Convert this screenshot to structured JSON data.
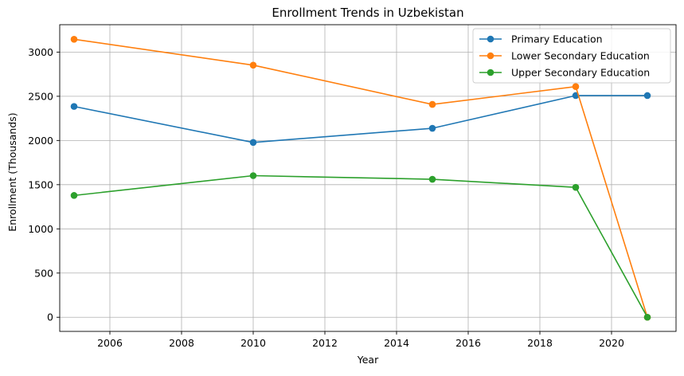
{
  "chart_data": {
    "type": "line",
    "title": "Enrollment Trends in Uzbekistan",
    "xlabel": "Year",
    "ylabel": "Enrollment (Thousands)",
    "xlim": [
      2004.6,
      2021.8
    ],
    "ylim": [
      -160,
      3310
    ],
    "xticks": [
      2006,
      2008,
      2010,
      2012,
      2014,
      2016,
      2018,
      2020
    ],
    "yticks": [
      0,
      500,
      1000,
      1500,
      2000,
      2500,
      3000
    ],
    "grid": true,
    "legend_position": "top-right",
    "x": [
      2005,
      2010,
      2015,
      2019,
      2021
    ],
    "series": [
      {
        "name": "Primary Education",
        "color": "#1f77b4",
        "values": [
          2385,
          1978,
          2138,
          2508,
          2508
        ]
      },
      {
        "name": "Lower Secondary Education",
        "color": "#ff7f0e",
        "values": [
          3145,
          2852,
          2408,
          2610,
          0
        ]
      },
      {
        "name": "Upper Secondary Education",
        "color": "#2ca02c",
        "values": [
          1378,
          1602,
          1561,
          1470,
          0
        ]
      }
    ]
  }
}
